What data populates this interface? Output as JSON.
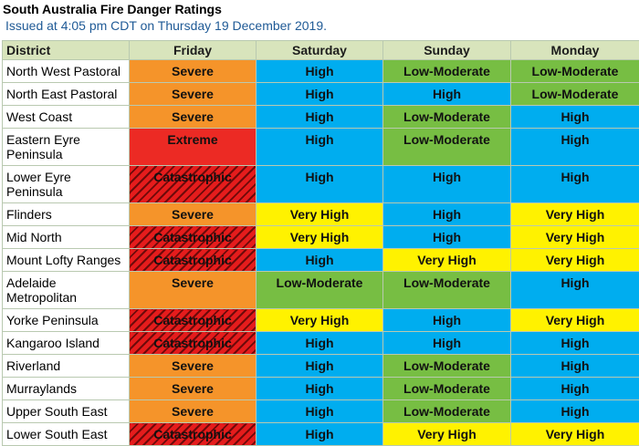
{
  "title": "South Australia Fire Danger Ratings",
  "issued": "Issued at 4:05 pm CDT on Thursday 19 December 2019.",
  "columns": [
    "District",
    "Friday",
    "Saturday",
    "Sunday",
    "Monday"
  ],
  "rating_colors": {
    "Catastrophic": "#e51c1c",
    "Extreme": "#ec2a24",
    "Severe": "#f5942a",
    "Very High": "#fff200",
    "High": "#00adef",
    "Low-Moderate": "#77be43"
  },
  "rows": [
    {
      "district": "North West Pastoral",
      "ratings": [
        "Severe",
        "High",
        "Low-Moderate",
        "Low-Moderate"
      ]
    },
    {
      "district": "North East Pastoral",
      "ratings": [
        "Severe",
        "High",
        "High",
        "Low-Moderate"
      ]
    },
    {
      "district": "West Coast",
      "ratings": [
        "Severe",
        "High",
        "Low-Moderate",
        "High"
      ]
    },
    {
      "district": "Eastern Eyre Peninsula",
      "ratings": [
        "Extreme",
        "High",
        "Low-Moderate",
        "High"
      ]
    },
    {
      "district": "Lower Eyre Peninsula",
      "ratings": [
        "Catastrophic",
        "High",
        "High",
        "High"
      ]
    },
    {
      "district": "Flinders",
      "ratings": [
        "Severe",
        "Very High",
        "High",
        "Very High"
      ]
    },
    {
      "district": "Mid North",
      "ratings": [
        "Catastrophic",
        "Very High",
        "High",
        "Very High"
      ]
    },
    {
      "district": "Mount Lofty Ranges",
      "ratings": [
        "Catastrophic",
        "High",
        "Very High",
        "Very High"
      ]
    },
    {
      "district": "Adelaide Metropolitan",
      "ratings": [
        "Severe",
        "Low-Moderate",
        "Low-Moderate",
        "High"
      ]
    },
    {
      "district": "Yorke Peninsula",
      "ratings": [
        "Catastrophic",
        "Very High",
        "High",
        "Very High"
      ]
    },
    {
      "district": "Kangaroo Island",
      "ratings": [
        "Catastrophic",
        "High",
        "High",
        "High"
      ]
    },
    {
      "district": "Riverland",
      "ratings": [
        "Severe",
        "High",
        "Low-Moderate",
        "High"
      ]
    },
    {
      "district": "Murraylands",
      "ratings": [
        "Severe",
        "High",
        "Low-Moderate",
        "High"
      ]
    },
    {
      "district": "Upper South East",
      "ratings": [
        "Severe",
        "High",
        "Low-Moderate",
        "High"
      ]
    },
    {
      "district": "Lower South East",
      "ratings": [
        "Catastrophic",
        "High",
        "Very High",
        "Very High"
      ]
    }
  ]
}
